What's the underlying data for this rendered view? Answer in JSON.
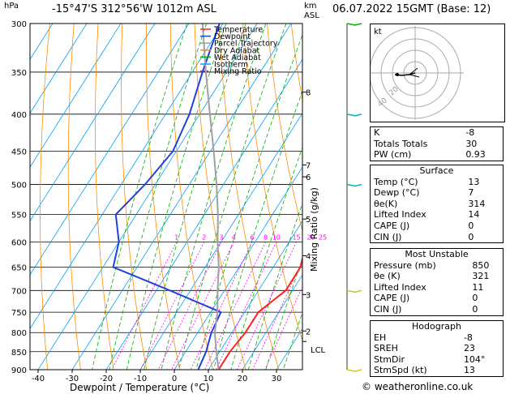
{
  "header": {
    "location": "-15°47'S  312°56'W  1012m  ASL",
    "datetime": "06.07.2022  15GMT  (Base: 12)"
  },
  "axes": {
    "hpa_label": "hPa",
    "km_label_1": "km",
    "km_label_2": "ASL",
    "xlabel": "Dewpoint / Temperature (°C)",
    "mixing_label": "Mixing Ratio (g/kg)"
  },
  "credit": "© weatheronline.co.uk",
  "colors": {
    "temperature": "#ff2020",
    "dewpoint": "#2040e0",
    "parcel": "#a0a0a0",
    "dry_adiabat": "#ff8c00",
    "wet_adiabat": "#00b000",
    "isotherm": "#00a0ff",
    "mixing_ratio": "#ff00ff"
  },
  "legend": [
    {
      "label": "Temperature",
      "color": "#ff2020",
      "dash": ""
    },
    {
      "label": "Dewpoint",
      "color": "#2040e0",
      "dash": ""
    },
    {
      "label": "Parcel Trajectory",
      "color": "#a0a0a0",
      "dash": ""
    },
    {
      "label": "Dry Adiabat",
      "color": "#ff8c00",
      "dash": ""
    },
    {
      "label": "Wet Adiabat",
      "color": "#00b000",
      "dash": ""
    },
    {
      "label": "Isotherm",
      "color": "#00a0ff",
      "dash": ""
    },
    {
      "label": "Mixing Ratio",
      "color": "#ff00ff",
      "dash": "2,2"
    }
  ],
  "chart_data": {
    "type": "line",
    "title": "",
    "xlabel": "Dewpoint / Temperature (°C)",
    "ylabel": "hPa",
    "pressure_ticks": [
      300,
      350,
      400,
      450,
      500,
      550,
      600,
      650,
      700,
      750,
      800,
      850,
      900
    ],
    "temperature_ticks": [
      -40,
      -30,
      -20,
      -10,
      0,
      10,
      20,
      30
    ],
    "km_ticks": [
      {
        "km": "8",
        "p": 373
      },
      {
        "km": "7",
        "p": 470
      },
      {
        "km": "6",
        "p": 488
      },
      {
        "km": "5",
        "p": 558
      },
      {
        "km": "4",
        "p": 627
      },
      {
        "km": "3",
        "p": 709
      },
      {
        "km": "2",
        "p": 796
      },
      {
        "km": "LCL",
        "p": 823
      }
    ],
    "mixing_ratio_labels": [
      "1",
      "2",
      "3",
      "4",
      "6",
      "8",
      "10",
      "15",
      "20",
      "25"
    ],
    "series": [
      {
        "name": "Temperature",
        "points": [
          [
            900,
            13
          ],
          [
            850,
            13
          ],
          [
            800,
            14
          ],
          [
            750,
            14
          ],
          [
            700,
            18
          ],
          [
            650,
            18
          ],
          [
            600,
            15
          ],
          [
            550,
            10
          ],
          [
            500,
            6
          ],
          [
            450,
            1
          ],
          [
            400,
            -6
          ],
          [
            350,
            -14
          ],
          [
            300,
            -21
          ]
        ]
      },
      {
        "name": "Dewpoint",
        "points": [
          [
            900,
            7
          ],
          [
            850,
            6
          ],
          [
            800,
            4
          ],
          [
            750,
            3
          ],
          [
            700,
            -16
          ],
          [
            650,
            -37
          ],
          [
            600,
            -40
          ],
          [
            550,
            -46
          ],
          [
            500,
            -43
          ],
          [
            450,
            -41
          ],
          [
            400,
            -43
          ],
          [
            350,
            -47
          ],
          [
            300,
            -51
          ]
        ]
      },
      {
        "name": "Parcel Trajectory",
        "points": [
          [
            900,
            13
          ],
          [
            850,
            9
          ],
          [
            800,
            5
          ],
          [
            750,
            2
          ],
          [
            700,
            -2
          ],
          [
            650,
            -6
          ],
          [
            600,
            -11
          ],
          [
            550,
            -16
          ],
          [
            500,
            -22
          ],
          [
            450,
            -29
          ],
          [
            400,
            -37
          ],
          [
            350,
            -46
          ],
          [
            300,
            -56
          ]
        ]
      }
    ]
  },
  "wind_barbs": [
    {
      "p": 300
    },
    {
      "p": 400
    },
    {
      "p": 500
    },
    {
      "p": 700
    },
    {
      "p": 900
    }
  ],
  "hodograph": {
    "label": "kt",
    "ring_labels": [
      "40",
      "20"
    ]
  },
  "indices": {
    "rows1": [
      [
        "K",
        "-8"
      ],
      [
        "Totals Totals",
        "30"
      ],
      [
        "PW (cm)",
        "0.93"
      ]
    ],
    "surface": {
      "title": "Surface",
      "rows": [
        [
          "Temp (°C)",
          "13"
        ],
        [
          "Dewp (°C)",
          "7"
        ],
        [
          "θe(K)",
          "314"
        ],
        [
          "Lifted Index",
          "14"
        ],
        [
          "CAPE (J)",
          "0"
        ],
        [
          "CIN (J)",
          "0"
        ]
      ]
    },
    "unstable": {
      "title": "Most Unstable",
      "rows": [
        [
          "Pressure (mb)",
          "850"
        ],
        [
          "θe (K)",
          "321"
        ],
        [
          "Lifted Index",
          "11"
        ],
        [
          "CAPE (J)",
          "0"
        ],
        [
          "CIN (J)",
          "0"
        ]
      ]
    },
    "hodo": {
      "title": "Hodograph",
      "rows": [
        [
          "EH",
          "-8"
        ],
        [
          "SREH",
          "23"
        ],
        [
          "StmDir",
          "104°"
        ],
        [
          "StmSpd (kt)",
          "13"
        ]
      ]
    }
  }
}
